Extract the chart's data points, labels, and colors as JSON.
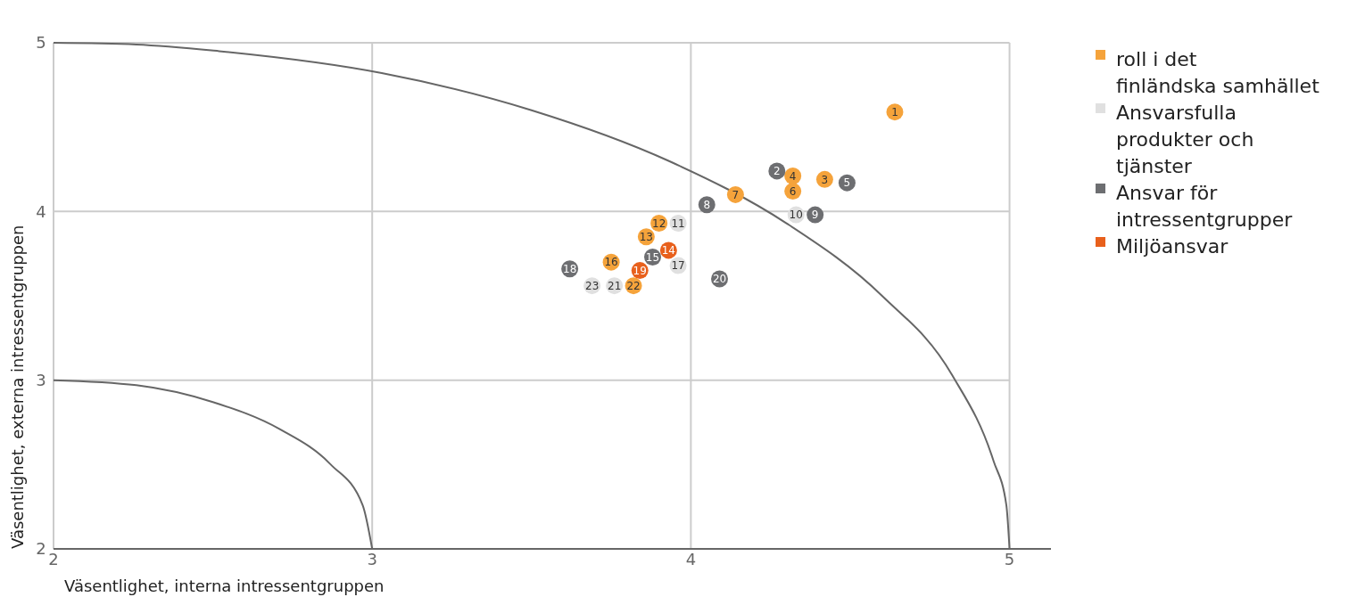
{
  "chart_data": {
    "type": "scatter",
    "xlabel": "Väsentlighet, interna intressentgruppen",
    "ylabel": "Väsentlighet, externa intressentgruppen",
    "xlim": [
      2,
      5.13
    ],
    "ylim": [
      2,
      5
    ],
    "xticks": [
      2,
      3,
      4,
      5
    ],
    "yticks": [
      2,
      3,
      4,
      5
    ],
    "grid": true,
    "legend": "top right",
    "marker": "circle",
    "series": [
      {
        "type": "line",
        "color": "#666666",
        "marker": "none",
        "x": [
          2,
          2.26,
          2.52,
          3.03,
          3.5,
          3.93,
          4.3,
          4.6,
          4.82,
          4.95,
          4.99,
          5
        ],
        "values": [
          5,
          4.99,
          4.95,
          4.82,
          4.6,
          4.3,
          3.93,
          3.5,
          3.03,
          2.52,
          2.26,
          2
        ]
      },
      {
        "type": "line",
        "color": "#666666",
        "marker": "none",
        "x": [
          2,
          2.26,
          2.5,
          2.71,
          2.87,
          2.97,
          3
        ],
        "values": [
          3,
          2.97,
          2.87,
          2.71,
          2.5,
          2.26,
          2
        ]
      },
      {
        "name": "roll i det finländska samhället",
        "color": "#f5a33b",
        "x": [
          4.64,
          4.42,
          4.32,
          4.32,
          4.14,
          3.9,
          3.86,
          3.75,
          3.82
        ],
        "values": [
          4.59,
          4.19,
          4.21,
          4.12,
          4.1,
          3.93,
          3.85,
          3.7,
          3.56
        ]
      },
      {
        "name": "Ansvarsfulla produkter och tjänster",
        "color": "#e0e0e0",
        "x": [
          4.33,
          3.96,
          3.96,
          3.76,
          3.69
        ],
        "values": [
          3.98,
          3.93,
          3.68,
          3.56,
          3.56
        ]
      },
      {
        "name": "Ansvar för intressentgrupper",
        "color": "#6d6e71",
        "x": [
          4.27,
          4.49,
          4.05,
          4.39,
          3.88,
          3.62,
          4.09
        ],
        "values": [
          4.24,
          4.17,
          4.04,
          3.98,
          3.73,
          3.66,
          3.6
        ]
      },
      {
        "name": "Miljöansvar",
        "color": "#e8601c",
        "x": [
          3.93,
          3.84
        ],
        "values": [
          3.77,
          3.65
        ]
      }
    ],
    "annotations": [
      {
        "text": "1",
        "x": 4.64,
        "y": 4.59
      },
      {
        "text": "3",
        "x": 4.42,
        "y": 4.19
      },
      {
        "text": "4",
        "x": 4.32,
        "y": 4.21
      },
      {
        "text": "6",
        "x": 4.32,
        "y": 4.12
      },
      {
        "text": "7",
        "x": 4.14,
        "y": 4.1
      },
      {
        "text": "12",
        "x": 3.9,
        "y": 3.93
      },
      {
        "text": "13",
        "x": 3.86,
        "y": 3.85
      },
      {
        "text": "16",
        "x": 3.75,
        "y": 3.7
      },
      {
        "text": "22",
        "x": 3.82,
        "y": 3.56
      },
      {
        "text": "10",
        "x": 4.33,
        "y": 3.98
      },
      {
        "text": "11",
        "x": 3.96,
        "y": 3.93
      },
      {
        "text": "17",
        "x": 3.96,
        "y": 3.68
      },
      {
        "text": "21",
        "x": 3.76,
        "y": 3.56
      },
      {
        "text": "23",
        "x": 3.69,
        "y": 3.56
      },
      {
        "text": "2",
        "x": 4.27,
        "y": 4.24
      },
      {
        "text": "5",
        "x": 4.49,
        "y": 4.17
      },
      {
        "text": "8",
        "x": 4.05,
        "y": 4.04
      },
      {
        "text": "9",
        "x": 4.39,
        "y": 3.98
      },
      {
        "text": "15",
        "x": 3.88,
        "y": 3.73
      },
      {
        "text": "18",
        "x": 3.62,
        "y": 3.66
      },
      {
        "text": "20",
        "x": 4.09,
        "y": 3.6
      },
      {
        "text": "14",
        "x": 3.93,
        "y": 3.77
      },
      {
        "text": "19",
        "x": 3.84,
        "y": 3.65
      }
    ]
  }
}
